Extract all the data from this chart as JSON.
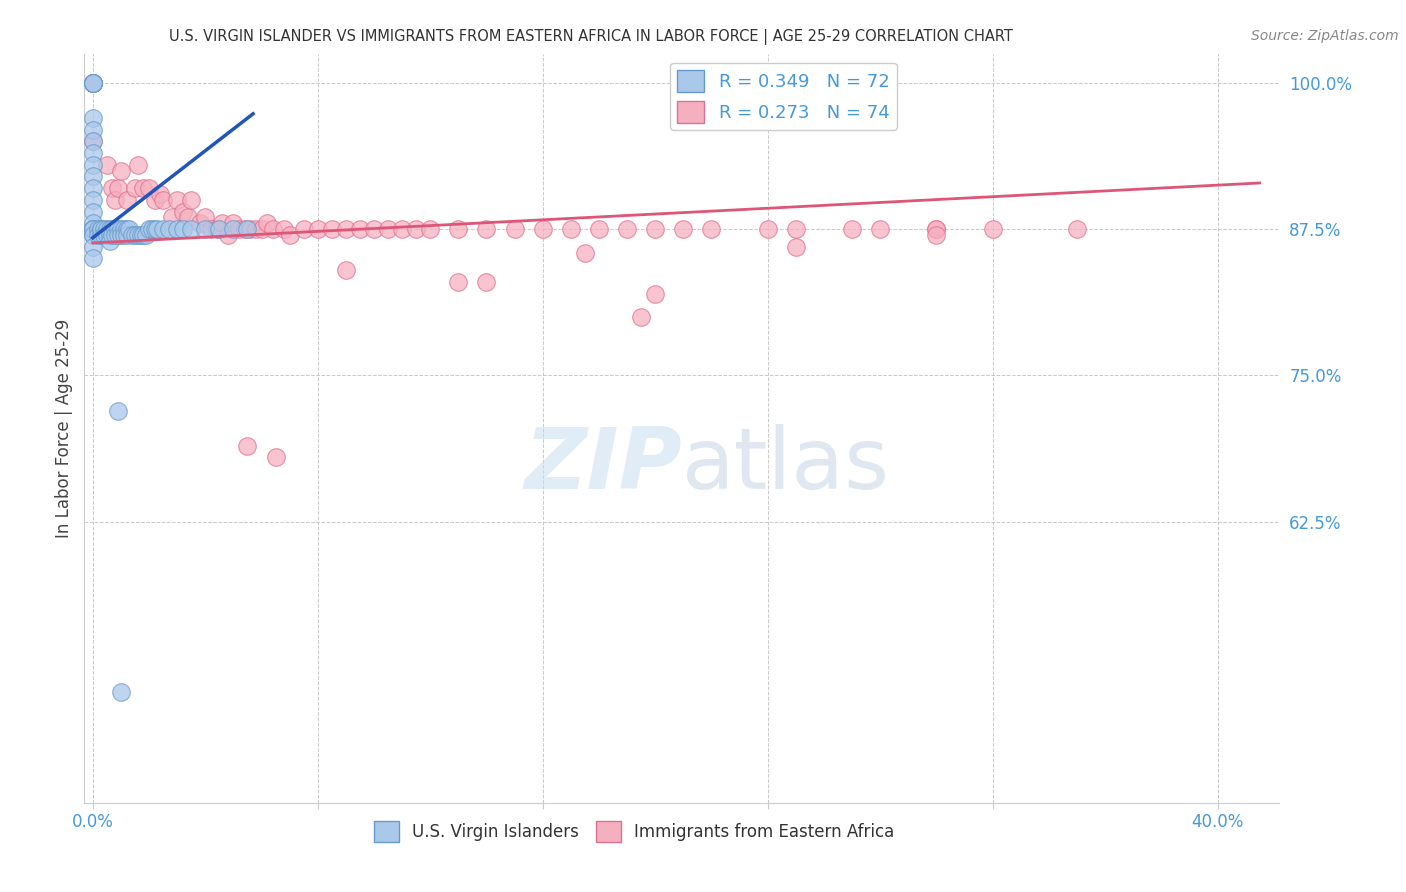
{
  "title": "U.S. VIRGIN ISLANDER VS IMMIGRANTS FROM EASTERN AFRICA IN LABOR FORCE | AGE 25-29 CORRELATION CHART",
  "source": "Source: ZipAtlas.com",
  "ylabel": "In Labor Force | Age 25-29",
  "legend_label_blue": "U.S. Virgin Islanders",
  "legend_label_pink": "Immigrants from Eastern Africa",
  "blue_R": 0.349,
  "blue_N": 72,
  "pink_R": 0.273,
  "pink_N": 74,
  "blue_color": "#aac8ea",
  "blue_edge_color": "#6699cc",
  "pink_color": "#f5b0c0",
  "pink_edge_color": "#e07090",
  "blue_line_color": "#2255bb",
  "pink_line_color": "#dd5577",
  "axis_tick_color": "#4499dd",
  "grid_color": "#bbbbbb",
  "title_color": "#333333",
  "watermark_color": "#cce0f5",
  "x_min": -0.003,
  "x_max": 0.422,
  "y_min": 0.385,
  "y_max": 1.025,
  "blue_scatter_x": [
    0.0,
    0.0,
    0.0,
    0.0,
    0.0,
    0.0,
    0.0,
    0.0,
    0.0,
    0.0,
    0.0,
    0.0,
    0.0,
    0.0,
    0.0,
    0.0,
    0.0,
    0.0,
    0.0,
    0.0,
    0.0,
    0.0,
    0.0,
    0.0,
    0.0,
    0.0,
    0.002,
    0.002,
    0.003,
    0.003,
    0.003,
    0.004,
    0.004,
    0.005,
    0.005,
    0.006,
    0.006,
    0.006,
    0.007,
    0.007,
    0.008,
    0.008,
    0.009,
    0.009,
    0.01,
    0.01,
    0.011,
    0.011,
    0.012,
    0.012,
    0.013,
    0.014,
    0.015,
    0.016,
    0.017,
    0.018,
    0.019,
    0.02,
    0.021,
    0.022,
    0.023,
    0.025,
    0.027,
    0.03,
    0.032,
    0.035,
    0.04,
    0.045,
    0.05,
    0.055,
    0.009,
    0.01
  ],
  "blue_scatter_y": [
    1.0,
    1.0,
    1.0,
    1.0,
    1.0,
    1.0,
    1.0,
    1.0,
    0.97,
    0.96,
    0.95,
    0.94,
    0.93,
    0.92,
    0.91,
    0.9,
    0.89,
    0.88,
    0.87,
    0.875,
    0.875,
    0.875,
    0.875,
    0.87,
    0.86,
    0.85,
    0.875,
    0.87,
    0.875,
    0.87,
    0.875,
    0.875,
    0.87,
    0.875,
    0.87,
    0.875,
    0.87,
    0.865,
    0.875,
    0.87,
    0.875,
    0.87,
    0.875,
    0.87,
    0.875,
    0.87,
    0.875,
    0.87,
    0.875,
    0.87,
    0.875,
    0.87,
    0.87,
    0.87,
    0.87,
    0.87,
    0.87,
    0.875,
    0.875,
    0.875,
    0.875,
    0.875,
    0.875,
    0.875,
    0.875,
    0.875,
    0.875,
    0.875,
    0.875,
    0.875,
    0.72,
    0.48
  ],
  "pink_scatter_x": [
    0.0,
    0.0,
    0.005,
    0.007,
    0.008,
    0.009,
    0.01,
    0.012,
    0.015,
    0.016,
    0.018,
    0.02,
    0.022,
    0.024,
    0.025,
    0.028,
    0.03,
    0.032,
    0.034,
    0.035,
    0.038,
    0.04,
    0.042,
    0.044,
    0.046,
    0.048,
    0.05,
    0.052,
    0.054,
    0.056,
    0.058,
    0.06,
    0.062,
    0.064,
    0.068,
    0.07,
    0.075,
    0.08,
    0.085,
    0.09,
    0.095,
    0.1,
    0.105,
    0.11,
    0.115,
    0.12,
    0.13,
    0.14,
    0.15,
    0.16,
    0.17,
    0.18,
    0.19,
    0.2,
    0.21,
    0.22,
    0.24,
    0.25,
    0.27,
    0.28,
    0.3,
    0.32,
    0.35,
    0.3,
    0.175,
    0.09,
    0.13,
    0.14,
    0.2,
    0.25,
    0.195,
    0.055,
    0.065,
    0.3
  ],
  "pink_scatter_y": [
    1.0,
    0.95,
    0.93,
    0.91,
    0.9,
    0.91,
    0.925,
    0.9,
    0.91,
    0.93,
    0.91,
    0.91,
    0.9,
    0.905,
    0.9,
    0.885,
    0.9,
    0.89,
    0.885,
    0.9,
    0.88,
    0.885,
    0.875,
    0.875,
    0.88,
    0.87,
    0.88,
    0.875,
    0.875,
    0.875,
    0.875,
    0.875,
    0.88,
    0.875,
    0.875,
    0.87,
    0.875,
    0.875,
    0.875,
    0.875,
    0.875,
    0.875,
    0.875,
    0.875,
    0.875,
    0.875,
    0.875,
    0.875,
    0.875,
    0.875,
    0.875,
    0.875,
    0.875,
    0.875,
    0.875,
    0.875,
    0.875,
    0.875,
    0.875,
    0.875,
    0.875,
    0.875,
    0.875,
    0.875,
    0.855,
    0.84,
    0.83,
    0.83,
    0.82,
    0.86,
    0.8,
    0.69,
    0.68,
    0.87
  ]
}
